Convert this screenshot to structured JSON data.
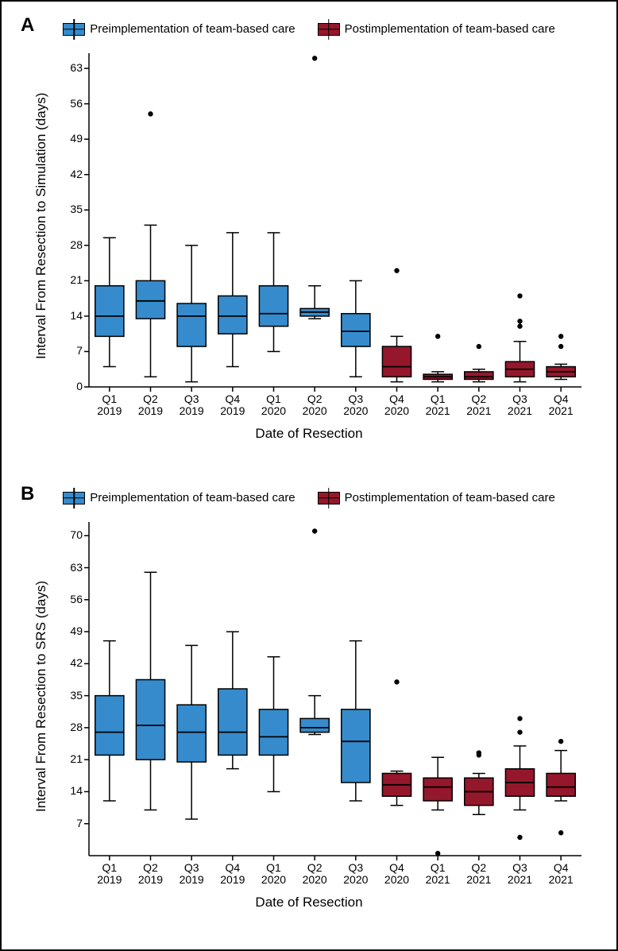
{
  "colors": {
    "pre": "#368bcc",
    "post": "#95172b",
    "stroke": "#000000",
    "grid_bg": "#ffffff",
    "outlier": "#000000"
  },
  "box_stroke_width": 1.5,
  "whisker_stroke_width": 1.5,
  "outlier_radius": 3.2,
  "panels": [
    {
      "id": "A",
      "panel_label": "A",
      "legend": {
        "pre_label": "Preimplementation of team-based care",
        "post_label": "Postimplementation of team-based care"
      },
      "y_axis": {
        "label": "Interval From Resection to Simulation (days)",
        "min": 0,
        "max": 66,
        "ticks": [
          0,
          7,
          14,
          21,
          28,
          35,
          42,
          49,
          56,
          63
        ],
        "label_fontsize": 17
      },
      "x_axis": {
        "label": "Date of Resection",
        "categories": [
          "Q1\n2019",
          "Q2\n2019",
          "Q3\n2019",
          "Q4\n2019",
          "Q1\n2020",
          "Q2\n2020",
          "Q3\n2020",
          "Q4\n2020",
          "Q1\n2021",
          "Q2\n2021",
          "Q3\n2021",
          "Q4\n2021"
        ]
      },
      "boxes": [
        {
          "group": "pre",
          "q1": 10,
          "median": 14,
          "q3": 20,
          "low": 4,
          "high": 29.5,
          "outliers": []
        },
        {
          "group": "pre",
          "q1": 13.5,
          "median": 17,
          "q3": 21,
          "low": 2,
          "high": 32,
          "outliers": [
            54
          ]
        },
        {
          "group": "pre",
          "q1": 8,
          "median": 14,
          "q3": 16.5,
          "low": 1,
          "high": 28,
          "outliers": []
        },
        {
          "group": "pre",
          "q1": 10.5,
          "median": 14,
          "q3": 18,
          "low": 4,
          "high": 30.5,
          "outliers": []
        },
        {
          "group": "pre",
          "q1": 12,
          "median": 14.5,
          "q3": 20,
          "low": 7,
          "high": 30.5,
          "outliers": []
        },
        {
          "group": "pre",
          "q1": 14,
          "median": 14.8,
          "q3": 15.5,
          "low": 13.5,
          "high": 20,
          "outliers": [
            65
          ]
        },
        {
          "group": "pre",
          "q1": 8,
          "median": 11,
          "q3": 14.5,
          "low": 2,
          "high": 21,
          "outliers": []
        },
        {
          "group": "post",
          "q1": 2,
          "median": 4,
          "q3": 8,
          "low": 1,
          "high": 10,
          "outliers": [
            23
          ]
        },
        {
          "group": "post",
          "q1": 1.5,
          "median": 2,
          "q3": 2.5,
          "low": 1,
          "high": 3,
          "outliers": [
            10
          ]
        },
        {
          "group": "post",
          "q1": 1.5,
          "median": 2,
          "q3": 3,
          "low": 1,
          "high": 3.5,
          "outliers": [
            8
          ]
        },
        {
          "group": "post",
          "q1": 2,
          "median": 3.5,
          "q3": 5,
          "low": 1,
          "high": 9,
          "outliers": [
            18,
            13,
            12
          ]
        },
        {
          "group": "post",
          "q1": 2,
          "median": 3,
          "q3": 4,
          "low": 1.5,
          "high": 4.5,
          "outliers": [
            10,
            8
          ]
        }
      ]
    },
    {
      "id": "B",
      "panel_label": "B",
      "legend": {
        "pre_label": "Preimplementation of team-based care",
        "post_label": "Postimplementation of team-based care"
      },
      "y_axis": {
        "label": "Interval From Resection to SRS (days)",
        "min": 0,
        "max": 73,
        "ticks": [
          7,
          14,
          21,
          28,
          35,
          42,
          49,
          56,
          63,
          70
        ],
        "label_fontsize": 17
      },
      "x_axis": {
        "label": "Date of Resection",
        "categories": [
          "Q1\n2019",
          "Q2\n2019",
          "Q3\n2019",
          "Q4\n2019",
          "Q1\n2020",
          "Q2\n2020",
          "Q3\n2020",
          "Q4\n2020",
          "Q1\n2021",
          "Q2\n2021",
          "Q3\n2021",
          "Q4\n2021"
        ]
      },
      "boxes": [
        {
          "group": "pre",
          "q1": 22,
          "median": 27,
          "q3": 35,
          "low": 12,
          "high": 47,
          "outliers": []
        },
        {
          "group": "pre",
          "q1": 21,
          "median": 28.5,
          "q3": 38.5,
          "low": 10,
          "high": 62,
          "outliers": []
        },
        {
          "group": "pre",
          "q1": 20.5,
          "median": 27,
          "q3": 33,
          "low": 8,
          "high": 46,
          "outliers": []
        },
        {
          "group": "pre",
          "q1": 22,
          "median": 27,
          "q3": 36.5,
          "low": 19,
          "high": 49,
          "outliers": []
        },
        {
          "group": "pre",
          "q1": 22,
          "median": 26,
          "q3": 32,
          "low": 14,
          "high": 43.5,
          "outliers": []
        },
        {
          "group": "pre",
          "q1": 27,
          "median": 28,
          "q3": 30,
          "low": 26.5,
          "high": 35,
          "outliers": [
            71
          ]
        },
        {
          "group": "pre",
          "q1": 16,
          "median": 25,
          "q3": 32,
          "low": 12,
          "high": 47,
          "outliers": []
        },
        {
          "group": "post",
          "q1": 13,
          "median": 15.5,
          "q3": 18,
          "low": 11,
          "high": 18.5,
          "outliers": [
            38
          ]
        },
        {
          "group": "post",
          "q1": 12,
          "median": 15,
          "q3": 17,
          "low": 10,
          "high": 21.5,
          "outliers": [
            0.5
          ]
        },
        {
          "group": "post",
          "q1": 11,
          "median": 14,
          "q3": 17,
          "low": 9,
          "high": 18,
          "outliers": [
            22,
            22.5
          ]
        },
        {
          "group": "post",
          "q1": 13,
          "median": 16,
          "q3": 19,
          "low": 10,
          "high": 24,
          "outliers": [
            30,
            27,
            4
          ]
        },
        {
          "group": "post",
          "q1": 13,
          "median": 15,
          "q3": 18,
          "low": 12,
          "high": 23,
          "outliers": [
            25,
            5
          ]
        }
      ]
    }
  ]
}
